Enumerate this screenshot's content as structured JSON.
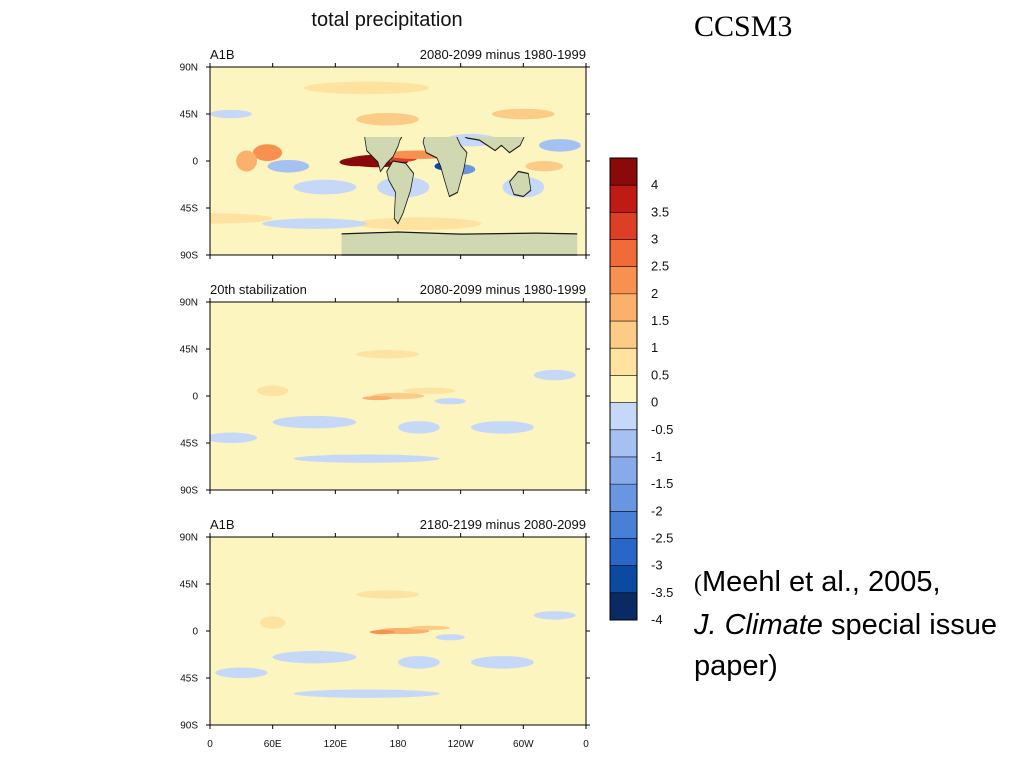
{
  "chart_data": {
    "type": "heatmap",
    "title": "total precipitation",
    "colors": {
      "land": "#cfd8b0",
      "coast": "#1a1a1a",
      "scale": [
        "#0a2a64",
        "#0b4aa0",
        "#2a66c8",
        "#4a7fd8",
        "#6a95e0",
        "#87abea",
        "#a5c1f2",
        "#c6d8f8",
        "#fcf5c0",
        "#fde2a0",
        "#fccb85",
        "#fbb06b",
        "#f89150",
        "#f06a3a",
        "#dc3e26",
        "#bf1a14",
        "#8a0a0a"
      ]
    },
    "colorbar": {
      "ticks": [
        "4",
        "3.5",
        "3",
        "2.5",
        "2",
        "1.5",
        "1",
        "0.5",
        "0",
        "-0.5",
        "-1",
        "-1.5",
        "-2",
        "-2.5",
        "-3",
        "-3.5",
        "-4"
      ]
    },
    "x_ticks": [
      "0",
      "60E",
      "120E",
      "180",
      "120W",
      "60W",
      "0"
    ],
    "y_ticks": [
      "90N",
      "45N",
      "0",
      "45S",
      "90S"
    ],
    "panels": [
      {
        "left_label": "A1B",
        "right_label": "2080-2099 minus 1980-1999",
        "blobs": [
          {
            "lon": 160,
            "lat": 0,
            "rlon": 30,
            "rlat": 6,
            "v": 4
          },
          {
            "lon": 140,
            "lat": -1,
            "rlon": 16,
            "rlat": 4,
            "v": 4
          },
          {
            "lon": 180,
            "lat": 2,
            "rlon": 18,
            "rlat": 3,
            "v": 3
          },
          {
            "lon": 200,
            "lat": 6,
            "rlon": 35,
            "rlat": 4,
            "v": 2
          },
          {
            "lon": 225,
            "lat": -5,
            "rlon": 10,
            "rlat": 4,
            "v": -3.5
          },
          {
            "lon": 240,
            "lat": -8,
            "rlon": 14,
            "rlat": 5,
            "v": -2
          },
          {
            "lon": 55,
            "lat": 8,
            "rlon": 14,
            "rlat": 8,
            "v": 2
          },
          {
            "lon": 35,
            "lat": 0,
            "rlon": 10,
            "rlat": 10,
            "v": 1.5
          },
          {
            "lon": 75,
            "lat": -5,
            "rlon": 20,
            "rlat": 6,
            "v": -1
          },
          {
            "lon": 110,
            "lat": -25,
            "rlon": 30,
            "rlat": 7,
            "v": -0.5
          },
          {
            "lon": 170,
            "lat": 40,
            "rlon": 30,
            "rlat": 6,
            "v": 1
          },
          {
            "lon": 185,
            "lat": -25,
            "rlon": 25,
            "rlat": 10,
            "v": -0.5
          },
          {
            "lon": 300,
            "lat": -25,
            "rlon": 20,
            "rlat": 10,
            "v": -0.5
          },
          {
            "lon": 320,
            "lat": -5,
            "rlon": 18,
            "rlat": 5,
            "v": 1
          },
          {
            "lon": 335,
            "lat": 15,
            "rlon": 20,
            "rlat": 6,
            "v": -1
          },
          {
            "lon": 20,
            "lat": 45,
            "rlon": 20,
            "rlat": 4,
            "v": -0.5
          },
          {
            "lon": 200,
            "lat": -60,
            "rlon": 60,
            "rlat": 6,
            "v": 0.5
          },
          {
            "lon": 300,
            "lat": 45,
            "rlon": 30,
            "rlat": 5,
            "v": 1
          },
          {
            "lon": 250,
            "lat": 20,
            "rlon": 25,
            "rlat": 6,
            "v": -0.5
          },
          {
            "lon": 0,
            "lat": -55,
            "rlon": 60,
            "rlat": 5,
            "v": 0.5
          },
          {
            "lon": 100,
            "lat": -60,
            "rlon": 50,
            "rlat": 5,
            "v": -0.5
          },
          {
            "lon": 150,
            "lat": 70,
            "rlon": 60,
            "rlat": 6,
            "v": 0.5
          }
        ]
      },
      {
        "left_label": "20th stabilization",
        "right_label": "2080-2099 minus 1980-1999",
        "blobs": [
          {
            "lon": 180,
            "lat": 0,
            "rlon": 25,
            "rlat": 3,
            "v": 1
          },
          {
            "lon": 160,
            "lat": -2,
            "rlon": 14,
            "rlat": 2,
            "v": 1.5
          },
          {
            "lon": 210,
            "lat": 5,
            "rlon": 25,
            "rlat": 3,
            "v": 0.5
          },
          {
            "lon": 230,
            "lat": -5,
            "rlon": 15,
            "rlat": 3,
            "v": -0.5
          },
          {
            "lon": 100,
            "lat": -25,
            "rlon": 40,
            "rlat": 6,
            "v": -0.5
          },
          {
            "lon": 280,
            "lat": -30,
            "rlon": 30,
            "rlat": 6,
            "v": -0.5
          },
          {
            "lon": 200,
            "lat": -30,
            "rlon": 20,
            "rlat": 6,
            "v": -0.5
          },
          {
            "lon": 20,
            "lat": -40,
            "rlon": 25,
            "rlat": 5,
            "v": -0.5
          },
          {
            "lon": 170,
            "lat": 40,
            "rlon": 30,
            "rlat": 4,
            "v": 0.5
          },
          {
            "lon": 60,
            "lat": 5,
            "rlon": 15,
            "rlat": 5,
            "v": 0.5
          },
          {
            "lon": 330,
            "lat": 20,
            "rlon": 20,
            "rlat": 5,
            "v": -0.5
          },
          {
            "lon": 150,
            "lat": -60,
            "rlon": 70,
            "rlat": 4,
            "v": -0.5
          }
        ]
      },
      {
        "left_label": "A1B",
        "right_label": "2180-2199 minus 2080-2099",
        "blobs": [
          {
            "lon": 185,
            "lat": 0,
            "rlon": 25,
            "rlat": 3,
            "v": 1.5
          },
          {
            "lon": 165,
            "lat": -1,
            "rlon": 12,
            "rlat": 2,
            "v": 2
          },
          {
            "lon": 210,
            "lat": 3,
            "rlon": 20,
            "rlat": 2,
            "v": 1
          },
          {
            "lon": 230,
            "lat": -6,
            "rlon": 14,
            "rlat": 3,
            "v": -0.5
          },
          {
            "lon": 100,
            "lat": -25,
            "rlon": 40,
            "rlat": 6,
            "v": -0.5
          },
          {
            "lon": 280,
            "lat": -30,
            "rlon": 30,
            "rlat": 6,
            "v": -0.5
          },
          {
            "lon": 200,
            "lat": -30,
            "rlon": 20,
            "rlat": 6,
            "v": -0.5
          },
          {
            "lon": 30,
            "lat": -40,
            "rlon": 25,
            "rlat": 5,
            "v": -0.5
          },
          {
            "lon": 170,
            "lat": 35,
            "rlon": 30,
            "rlat": 4,
            "v": 0.5
          },
          {
            "lon": 60,
            "lat": 8,
            "rlon": 12,
            "rlat": 6,
            "v": 0.5
          },
          {
            "lon": 330,
            "lat": 15,
            "rlon": 20,
            "rlat": 4,
            "v": -0.5
          },
          {
            "lon": 150,
            "lat": -60,
            "rlon": 70,
            "rlat": 4,
            "v": -0.5
          }
        ]
      }
    ]
  },
  "header": {
    "model": "CCSM3"
  },
  "citation": {
    "paren_open": "(",
    "authors": "Meehl et al., 2005,",
    "journal": "J. Climate",
    "rest": " special issue paper)"
  }
}
